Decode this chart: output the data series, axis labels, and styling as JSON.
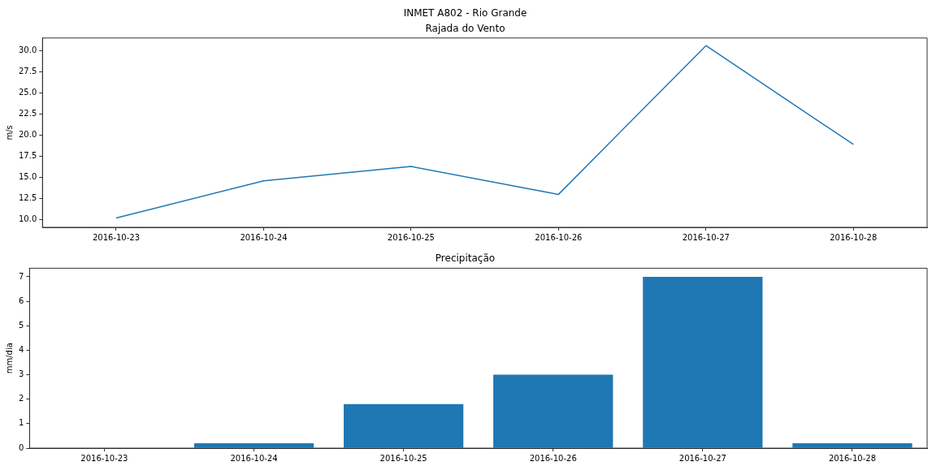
{
  "chart_data": [
    {
      "type": "line",
      "title": "INMET A802 - Rio Grande",
      "subtitle": "Rajada do Vento",
      "ylabel": "m/s",
      "categories": [
        "2016-10-23",
        "2016-10-24",
        "2016-10-25",
        "2016-10-26",
        "2016-10-27",
        "2016-10-28"
      ],
      "series": [
        {
          "color": "#1f77b4",
          "values": [
            10.2,
            14.6,
            16.3,
            13.0,
            30.6,
            18.9
          ]
        }
      ],
      "ylim": [
        9.1,
        31.5
      ],
      "yticks": [
        {
          "value": 10,
          "label": "10.0"
        },
        {
          "value": 12.5,
          "label": "12.5"
        },
        {
          "value": 15,
          "label": "15.0"
        },
        {
          "value": 17.5,
          "label": "17.5"
        },
        {
          "value": 20,
          "label": "20.0"
        },
        {
          "value": 22.5,
          "label": "22.5"
        },
        {
          "value": 25,
          "label": "25.0"
        },
        {
          "value": 27.5,
          "label": "27.5"
        },
        {
          "value": 30,
          "label": "30.0"
        }
      ],
      "grid": false,
      "legend": false,
      "marker": "none"
    },
    {
      "type": "bar",
      "title": "Precipitação",
      "ylabel": "mm/dia",
      "categories": [
        "2016-10-23",
        "2016-10-24",
        "2016-10-25",
        "2016-10-26",
        "2016-10-27",
        "2016-10-28"
      ],
      "series": [
        {
          "color": "#1f77b4",
          "values": [
            0,
            0.2,
            1.8,
            3.0,
            7.0,
            0.2
          ]
        }
      ],
      "ylim": [
        0,
        7.35
      ],
      "yticks": [
        0,
        1,
        2,
        3,
        4,
        5,
        6,
        7
      ],
      "grid": false,
      "legend": false
    }
  ]
}
